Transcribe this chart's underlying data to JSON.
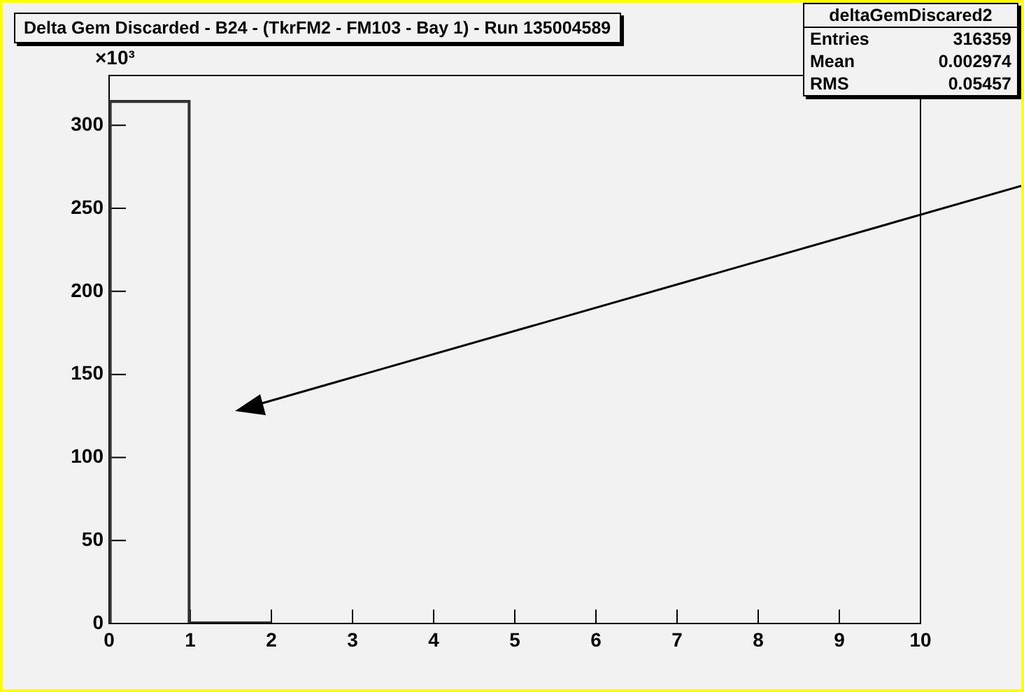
{
  "chart_data": {
    "type": "histogram",
    "title": "Delta Gem Discarded - B24 - (TkrFM2 - FM103 - Bay 1) - Run 135004589",
    "ylabel": "×10³",
    "bins": [
      0,
      1,
      2,
      3,
      4,
      5,
      6,
      7,
      8,
      9,
      10
    ],
    "values": [
      315,
      1,
      0,
      0,
      0,
      0,
      0,
      0,
      0,
      0
    ],
    "color": "#333333",
    "xlim": [
      0,
      10
    ],
    "xticks": [
      0,
      1,
      2,
      3,
      4,
      5,
      6,
      7,
      8,
      9,
      10
    ],
    "ylim": [
      0,
      330
    ],
    "yticks": [
      0,
      50,
      100,
      150,
      200,
      250,
      300
    ],
    "grid": false,
    "legend": false,
    "annotations": [
      "deltaGemDiscared2",
      "Entries 316359",
      "Mean 0.002974",
      "RMS 0.05457"
    ]
  }
}
